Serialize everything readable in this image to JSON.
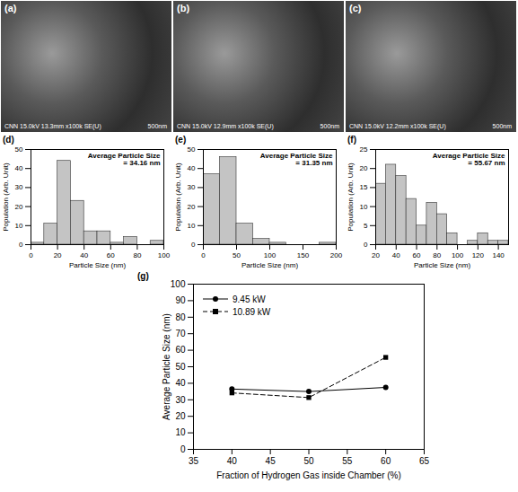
{
  "images": [
    {
      "label": "(a)",
      "caption": "CNN 15.0kV 13.3mm x100k SE(U)",
      "scale_bar": "500nm"
    },
    {
      "label": "(b)",
      "caption": "CNN 15.0kV 12.9mm x100k SE(U)",
      "scale_bar": "500nm"
    },
    {
      "label": "(c)",
      "caption": "CNN 15.0kV 12.2mm x100k SE(U)",
      "scale_bar": "500nm"
    }
  ],
  "chart_data": [
    {
      "type": "histogram",
      "title": "(d)",
      "color": "#c4c4c4",
      "bins": [
        0,
        10,
        20,
        30,
        40,
        50,
        60,
        70,
        80,
        90,
        100
      ],
      "values": [
        1,
        11,
        44,
        23,
        7,
        7,
        1,
        4,
        0,
        2
      ],
      "xlim": [
        0,
        100
      ],
      "xticks": [
        0,
        20,
        40,
        60,
        80,
        100
      ],
      "ylim": [
        0,
        50
      ],
      "yticks": [
        0,
        10,
        20,
        30,
        40,
        50
      ],
      "x_label": "Particle Size (nm)",
      "y_label": "Population (Arb. Unit)",
      "annotation": [
        "Average Particle Size",
        "= 34.16 nm"
      ]
    },
    {
      "type": "histogram",
      "title": "(e)",
      "color": "#c4c4c4",
      "bins": [
        0,
        25,
        50,
        75,
        100,
        125,
        150,
        175,
        200
      ],
      "values": [
        37,
        46,
        11,
        3,
        1,
        0,
        0,
        1
      ],
      "xlim": [
        0,
        200
      ],
      "xticks": [
        0,
        50,
        100,
        150,
        200
      ],
      "ylim": [
        0,
        50
      ],
      "yticks": [
        0,
        10,
        20,
        30,
        40,
        50
      ],
      "x_label": "Particle Size (nm)",
      "y_label": "Population (Arb. Unit)",
      "annotation": [
        "Average Particle Size",
        "= 31.35 nm"
      ]
    },
    {
      "type": "histogram",
      "title": "(f)",
      "color": "#c4c4c4",
      "bins": [
        20,
        30,
        40,
        50,
        60,
        70,
        80,
        90,
        100,
        110,
        120,
        130,
        140,
        150
      ],
      "values": [
        16,
        21,
        18,
        12,
        5,
        11,
        8,
        3,
        0,
        1,
        3,
        1,
        1
      ],
      "xlim": [
        20,
        150
      ],
      "xticks": [
        20,
        40,
        60,
        80,
        100,
        120,
        140
      ],
      "ylim": [
        0,
        25
      ],
      "yticks": [
        0,
        5,
        10,
        15,
        20,
        25
      ],
      "x_label": "Particle Size (nm)",
      "y_label": "Population (Arb. Unit)",
      "annotation": [
        "Average Particle Size",
        "= 55.67 nm"
      ]
    },
    {
      "type": "line",
      "title": "(g)",
      "x": [
        40,
        50,
        60
      ],
      "xlim": [
        35,
        65
      ],
      "xticks": [
        35,
        40,
        45,
        50,
        55,
        60,
        65
      ],
      "ylim": [
        0,
        100
      ],
      "yticks": [
        0,
        10,
        20,
        30,
        40,
        50,
        60,
        70,
        80,
        90,
        100
      ],
      "x_label": "Fraction of Hydrogen Gas inside Chamber (%)",
      "y_label": "Average Particle Size (nm)",
      "legend": "top-left",
      "series": [
        {
          "name": "9.45 kW",
          "color": "#000000",
          "marker": "circle",
          "line_style": "solid",
          "values": [
            36.5,
            35,
            37.5
          ]
        },
        {
          "name": "10.89 kW",
          "color": "#000000",
          "marker": "square",
          "line_style": "dashed",
          "values": [
            34.16,
            31.35,
            55.67
          ]
        }
      ]
    }
  ]
}
